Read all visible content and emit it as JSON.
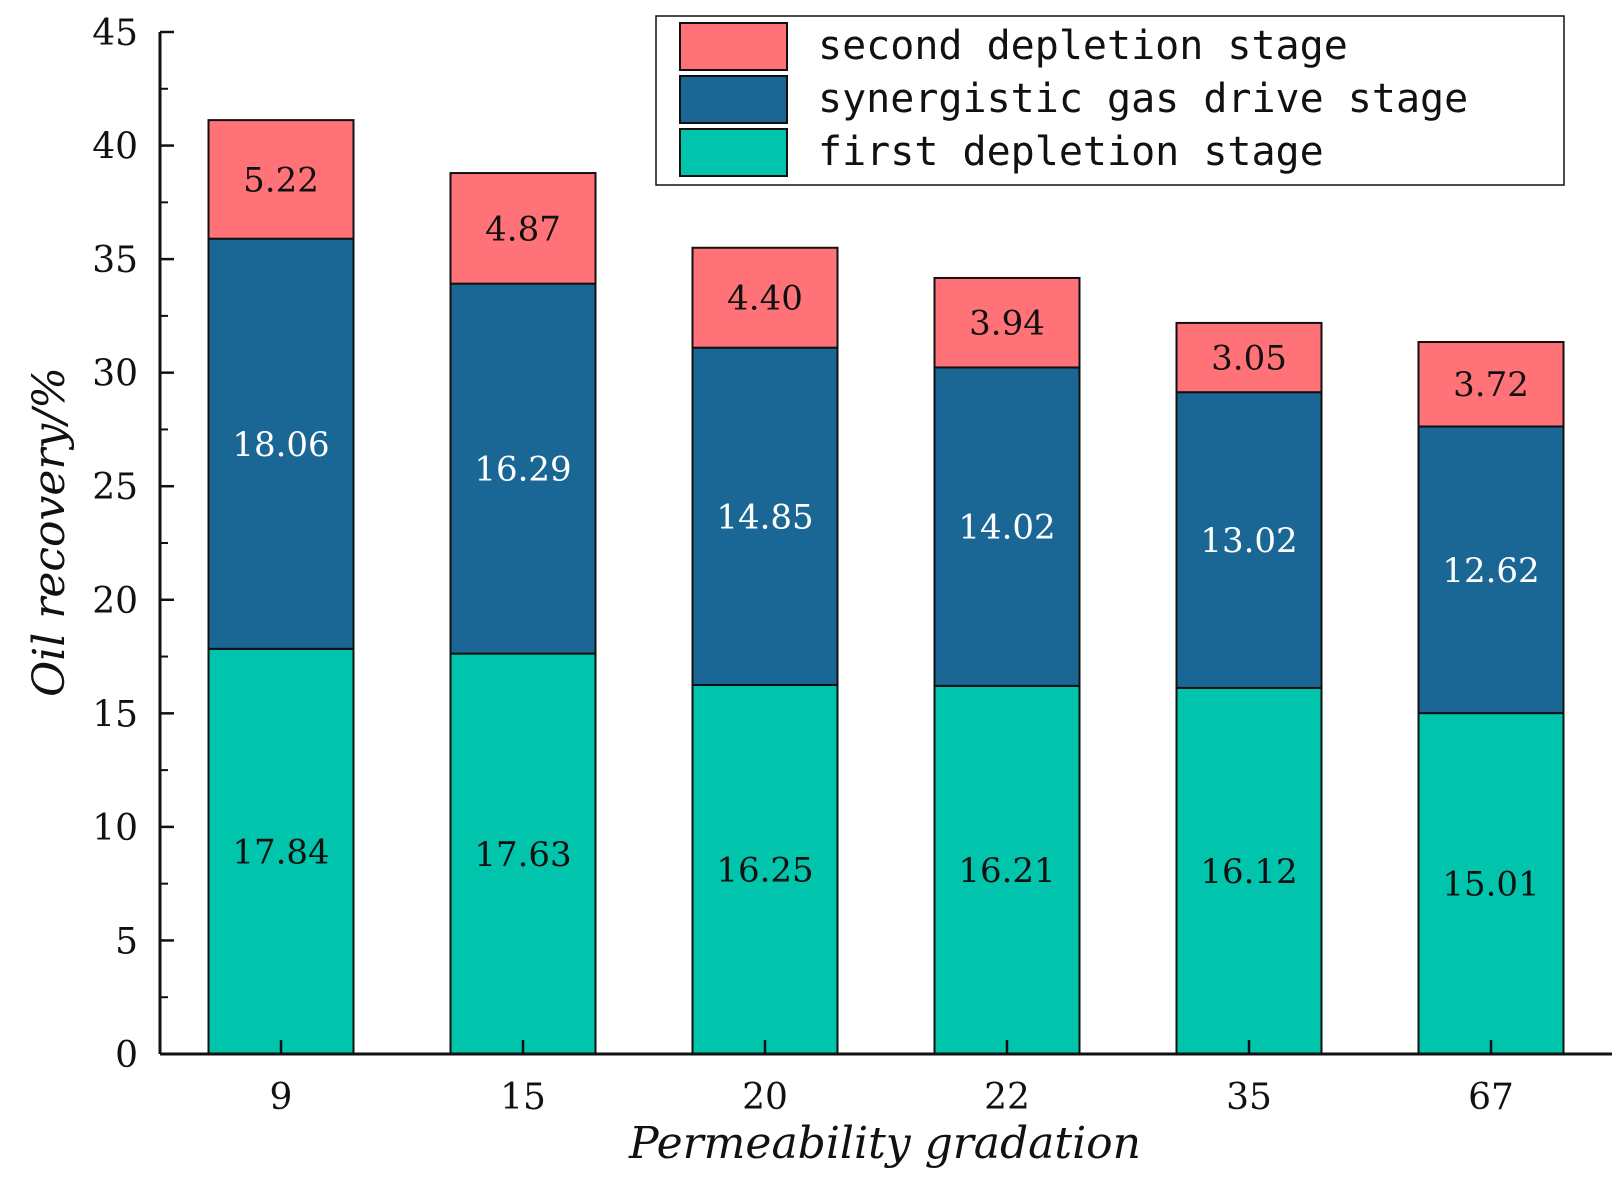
{
  "chart_data": {
    "type": "bar",
    "stacked": true,
    "title": "",
    "xlabel": "Permeability gradation",
    "ylabel": "Oil recovery/%",
    "ylim": [
      0,
      45
    ],
    "yticks": [
      "0",
      "5",
      "10",
      "15",
      "20",
      "25",
      "30",
      "35",
      "40",
      "45"
    ],
    "categories": [
      "9",
      "15",
      "20",
      "22",
      "35",
      "67"
    ],
    "series": [
      {
        "name": "first depletion stage",
        "color": "#00C5AC",
        "label_color": "#111111",
        "values": [
          17.84,
          17.63,
          16.25,
          16.21,
          16.12,
          15.01
        ],
        "labels": [
          "17.84",
          "17.63",
          "16.25",
          "16.21",
          "16.12",
          "15.01"
        ]
      },
      {
        "name": "synergistic gas drive stage",
        "color": "#1A6694",
        "label_color": "#ffffff",
        "values": [
          18.06,
          16.29,
          14.85,
          14.02,
          13.02,
          12.62
        ],
        "labels": [
          "18.06",
          "16.29",
          "14.85",
          "14.02",
          "13.02",
          "12.62"
        ]
      },
      {
        "name": "second depletion stage",
        "color": "#FF7278",
        "label_color": "#111111",
        "values": [
          5.22,
          4.87,
          4.4,
          3.94,
          3.05,
          3.72
        ],
        "labels": [
          "5.22",
          "4.87",
          "4.40",
          "3.94",
          "3.05",
          "3.72"
        ]
      }
    ],
    "legend": {
      "placement": "top-right",
      "order": [
        "second depletion stage",
        "synergistic gas drive stage",
        "first depletion stage"
      ]
    },
    "grid": false
  }
}
